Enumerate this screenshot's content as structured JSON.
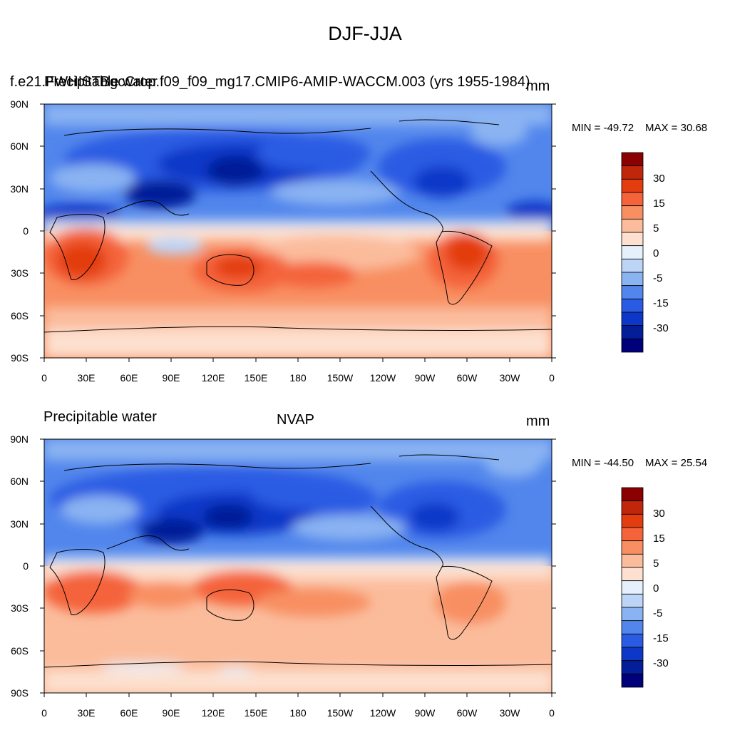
{
  "page": {
    "title": "DJF-JJA"
  },
  "axes": {
    "lat_labels": [
      "90N",
      "60N",
      "30N",
      "0",
      "30S",
      "60S",
      "90S"
    ],
    "lon_labels": [
      "0",
      "30E",
      "60E",
      "90E",
      "120E",
      "150E",
      "180",
      "150W",
      "120W",
      "90W",
      "60W",
      "30W",
      "0"
    ]
  },
  "colorbar": {
    "colors": [
      "#8b0000",
      "#c0260a",
      "#e33c0f",
      "#f4633a",
      "#f88f62",
      "#fbbc9c",
      "#fde0cf",
      "#e6effc",
      "#bcd5f7",
      "#8ab3f2",
      "#5286ec",
      "#2a5ce3",
      "#0c37c8",
      "#031e98",
      "#00007a"
    ],
    "labels": [
      "30",
      "15",
      "5",
      "0",
      "-5",
      "-15",
      "-30"
    ]
  },
  "panels": [
    {
      "id": "model",
      "title_left_a": "f.e21.FWHISTBgcCrop.f09_f09_mg17.CMIP6-AMIP-WACCM.003 (yrs 1955-1984)",
      "title_left_b": "Precipitable water",
      "title_center": "",
      "units": "mm",
      "min_label": "MIN = -49.72",
      "max_label": "MAX =  30.68"
    },
    {
      "id": "obs",
      "title_left_a": "Precipitable water",
      "title_left_b": "",
      "title_center": "NVAP",
      "units": "mm",
      "min_label": "MIN = -44.50",
      "max_label": "MAX =  25.54"
    }
  ]
}
